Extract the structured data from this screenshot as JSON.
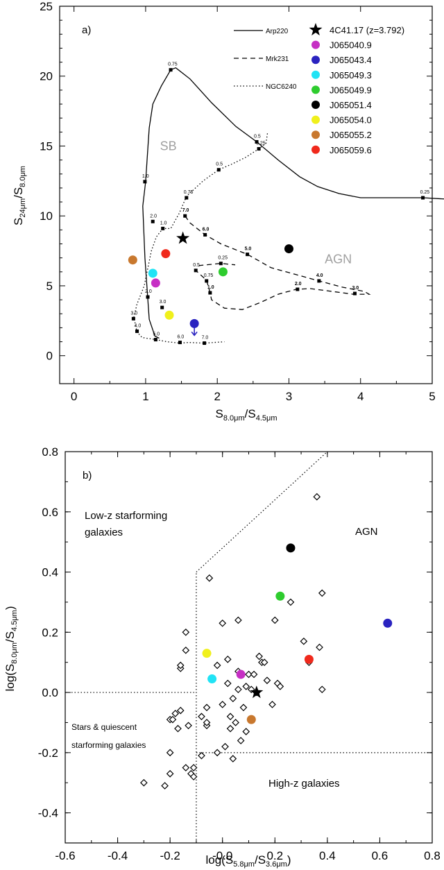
{
  "chart_data": [
    {
      "type": "line",
      "panel_label": "a)",
      "xlabel_main": "S",
      "xlabel_sub1": "8.0μm",
      "xlabel_slash": "/S",
      "xlabel_sub2": "4.5μm",
      "ylabel_main": "S",
      "ylabel_sub1": "24μm",
      "ylabel_slash": "/S",
      "ylabel_sub2": "8.0μm",
      "xlim": [
        -0.2,
        5.0
      ],
      "ylim": [
        -2,
        25
      ],
      "xticks": [
        0,
        1,
        2,
        3,
        4,
        5
      ],
      "yticks": [
        0,
        5,
        10,
        15,
        20,
        25
      ],
      "region_labels": [
        {
          "text": "SB",
          "x": 1.2,
          "y": 14.7
        },
        {
          "text": "AGN",
          "x": 3.5,
          "y": 6.6
        }
      ],
      "templates": [
        {
          "name": "Arp220",
          "style": "solid",
          "points": [
            [
              1.19,
              1.25
            ],
            [
              1.13,
              1.4
            ],
            [
              1.05,
              2.6
            ],
            [
              0.99,
              7.0
            ],
            [
              0.96,
              10.7
            ],
            [
              1.0,
              12.45
            ],
            [
              1.05,
              16.3
            ],
            [
              1.1,
              18.0
            ],
            [
              1.22,
              19.3
            ],
            [
              1.35,
              20.45
            ],
            [
              1.42,
              20.6
            ],
            [
              1.62,
              19.8
            ],
            [
              1.92,
              18.1
            ],
            [
              2.26,
              16.4
            ],
            [
              2.55,
              15.3
            ],
            [
              2.85,
              14.0
            ],
            [
              3.15,
              12.8
            ],
            [
              3.4,
              12.1
            ],
            [
              3.7,
              11.6
            ],
            [
              4.0,
              11.3
            ],
            [
              4.4,
              11.3
            ],
            [
              4.87,
              11.3
            ],
            [
              5.2,
              11.2
            ]
          ],
          "markers": [
            [
              1.35,
              20.45,
              "0.75"
            ],
            [
              2.55,
              15.3,
              "0.5"
            ],
            [
              4.87,
              11.3,
              "0.25"
            ],
            [
              0.99,
              12.45,
              "1.0"
            ]
          ]
        },
        {
          "name": "Mrk231",
          "style": "dashed",
          "points": [
            [
              1.55,
              10.0
            ],
            [
              1.62,
              9.5
            ],
            [
              1.83,
              8.65
            ],
            [
              2.05,
              8.0
            ],
            [
              2.42,
              7.25
            ],
            [
              2.75,
              6.3
            ],
            [
              3.1,
              5.8
            ],
            [
              3.42,
              5.35
            ],
            [
              3.75,
              4.9
            ],
            [
              4.05,
              4.6
            ],
            [
              4.12,
              4.4
            ],
            [
              3.9,
              4.4
            ],
            [
              3.6,
              4.6
            ],
            [
              3.3,
              4.8
            ],
            [
              3.1,
              4.75
            ],
            [
              2.85,
              4.4
            ],
            [
              2.6,
              3.8
            ],
            [
              2.35,
              3.3
            ],
            [
              2.1,
              3.4
            ],
            [
              1.92,
              4.0
            ],
            [
              1.9,
              4.5
            ],
            [
              1.85,
              5.4
            ],
            [
              1.7,
              6.1
            ],
            [
              1.75,
              6.45
            ],
            [
              2.05,
              6.6
            ],
            [
              2.25,
              6.5
            ]
          ],
          "markers": [
            [
              1.55,
              10.0,
              "7.0"
            ],
            [
              1.83,
              8.65,
              "6.0"
            ],
            [
              2.42,
              7.25,
              "5.0"
            ],
            [
              3.42,
              5.35,
              "4.0"
            ],
            [
              3.92,
              4.45,
              "3.0"
            ],
            [
              3.12,
              4.75,
              "2.0"
            ],
            [
              1.9,
              4.5,
              "1.0"
            ],
            [
              1.85,
              5.35,
              "0.75"
            ],
            [
              1.7,
              6.1,
              "0.5"
            ],
            [
              2.05,
              6.6,
              "0.25"
            ]
          ]
        },
        {
          "name": "NGC6240",
          "style": "dotted",
          "points": [
            [
              2.7,
              15.9
            ],
            [
              2.68,
              15.2
            ],
            [
              2.58,
              14.8
            ],
            [
              2.4,
              14.2
            ],
            [
              2.2,
              13.7
            ],
            [
              2.02,
              13.3
            ],
            [
              1.8,
              12.5
            ],
            [
              1.57,
              11.4
            ],
            [
              1.47,
              10.2
            ],
            [
              1.35,
              9.1
            ],
            [
              1.24,
              9.1
            ],
            [
              1.15,
              8.5
            ],
            [
              1.08,
              7.5
            ],
            [
              1.02,
              6.0
            ],
            [
              0.98,
              5.0
            ],
            [
              0.88,
              3.7
            ],
            [
              0.83,
              2.65
            ],
            [
              0.85,
              2.4
            ],
            [
              0.88,
              1.7
            ],
            [
              0.95,
              1.3
            ],
            [
              1.14,
              1.15
            ],
            [
              1.3,
              1.0
            ],
            [
              1.48,
              0.9
            ],
            [
              1.6,
              0.95
            ],
            [
              1.82,
              0.9
            ],
            [
              2.1,
              1.0
            ]
          ],
          "markers": [
            [
              2.58,
              14.8,
              "0.25"
            ],
            [
              2.02,
              13.3,
              "0.5"
            ],
            [
              1.57,
              11.3,
              "0.75"
            ],
            [
              1.24,
              9.1,
              "1.0"
            ],
            [
              1.1,
              9.6,
              "2.0"
            ],
            [
              1.23,
              3.45,
              "3.0"
            ],
            [
              0.83,
              2.65,
              "3.0"
            ],
            [
              0.88,
              1.75,
              "4.0"
            ],
            [
              1.14,
              1.15,
              "5.0"
            ],
            [
              1.48,
              0.95,
              "6.0"
            ],
            [
              1.82,
              0.9,
              "7.0"
            ]
          ],
          "extra_markers": [
            [
              1.03,
              4.2,
              "2.0"
            ]
          ]
        }
      ],
      "sources": [
        {
          "name": "4C41.17 (z=3.792)",
          "marker": "star",
          "color": "#000000",
          "x": 1.52,
          "y": 8.4
        },
        {
          "name": "J065040.9",
          "marker": "circle",
          "color": "#c62fc4",
          "x": 1.14,
          "y": 5.2
        },
        {
          "name": "J065043.4",
          "marker": "circle",
          "color": "#2a23c0",
          "x": 1.68,
          "y": 2.3,
          "upper_limit": true
        },
        {
          "name": "J065049.3",
          "marker": "circle",
          "color": "#21e3f5",
          "x": 1.1,
          "y": 5.9
        },
        {
          "name": "J065049.9",
          "marker": "circle",
          "color": "#2ecc2e",
          "x": 2.08,
          "y": 6.0
        },
        {
          "name": "J065051.4",
          "marker": "circle",
          "color": "#000000",
          "x": 3.0,
          "y": 7.65
        },
        {
          "name": "J065054.0",
          "marker": "circle",
          "color": "#f0f01c",
          "x": 1.33,
          "y": 2.9
        },
        {
          "name": "J065055.2",
          "marker": "circle",
          "color": "#c8782e",
          "x": 0.82,
          "y": 6.85
        },
        {
          "name": "J065059.6",
          "marker": "circle",
          "color": "#f0291c",
          "x": 1.28,
          "y": 7.3
        }
      ]
    },
    {
      "type": "scatter",
      "panel_label": "b)",
      "xlabel_pre": "log(S",
      "xlabel_sub1": "5.8μm",
      "xlabel_slash": "/S",
      "xlabel_sub2": "3.6μm",
      "xlabel_post": ")",
      "ylabel_pre": "log(S",
      "ylabel_sub1": "8.0μm",
      "ylabel_slash": "/S",
      "ylabel_sub2": "4.5μm",
      "ylabel_post": ")",
      "xlim": [
        -0.6,
        0.8
      ],
      "ylim": [
        -0.5,
        0.8
      ],
      "xticks": [
        "-0.6",
        "-0.4",
        "-0.2",
        "-0.0",
        "0.2",
        "0.4",
        "0.6",
        "0.8"
      ],
      "yticks": [
        "-0.4",
        "-0.2",
        "0.0",
        "0.2",
        "0.4",
        "0.6",
        "0.8"
      ],
      "region_labels": [
        {
          "lines": [
            "Low-z starforming",
            "galaxies"
          ]
        },
        {
          "lines": [
            "AGN"
          ]
        },
        {
          "lines": [
            "Stars & quiescent",
            "starforming galaxies"
          ]
        },
        {
          "lines": [
            "High-z galaxies"
          ]
        }
      ],
      "boundaries": [
        [
          [
            -0.6,
            0.0
          ],
          [
            -0.1,
            0.0
          ]
        ],
        [
          [
            -0.1,
            -0.5
          ],
          [
            -0.1,
            0.4
          ]
        ],
        [
          [
            -0.1,
            0.4
          ],
          [
            0.4,
            0.8
          ]
        ],
        [
          [
            -0.1,
            -0.2
          ],
          [
            0.8,
            -0.2
          ]
        ]
      ],
      "comparison_points": [
        [
          -0.3,
          -0.3
        ],
        [
          -0.22,
          -0.31
        ],
        [
          -0.2,
          -0.27
        ],
        [
          -0.2,
          -0.2
        ],
        [
          -0.2,
          -0.09
        ],
        [
          -0.19,
          -0.09
        ],
        [
          -0.18,
          -0.07
        ],
        [
          -0.17,
          -0.12
        ],
        [
          -0.16,
          -0.06
        ],
        [
          -0.16,
          0.08
        ],
        [
          -0.16,
          0.09
        ],
        [
          -0.14,
          0.14
        ],
        [
          -0.14,
          0.2
        ],
        [
          -0.13,
          -0.11
        ],
        [
          -0.14,
          -0.25
        ],
        [
          -0.12,
          -0.27
        ],
        [
          -0.11,
          -0.25
        ],
        [
          -0.11,
          -0.28
        ],
        [
          -0.08,
          -0.21
        ],
        [
          -0.08,
          -0.08
        ],
        [
          -0.06,
          -0.11
        ],
        [
          -0.06,
          -0.1
        ],
        [
          -0.06,
          -0.05
        ],
        [
          -0.05,
          0.38
        ],
        [
          -0.02,
          -0.2
        ],
        [
          -0.02,
          0.09
        ],
        [
          0.0,
          0.23
        ],
        [
          0.0,
          -0.04
        ],
        [
          0.01,
          -0.18
        ],
        [
          0.02,
          0.03
        ],
        [
          0.02,
          0.11
        ],
        [
          0.03,
          -0.08
        ],
        [
          0.03,
          -0.12
        ],
        [
          0.04,
          -0.22
        ],
        [
          0.04,
          -0.02
        ],
        [
          0.05,
          -0.1
        ],
        [
          0.06,
          0.07
        ],
        [
          0.06,
          0.01
        ],
        [
          0.06,
          0.24
        ],
        [
          0.08,
          -0.05
        ],
        [
          0.07,
          -0.16
        ],
        [
          0.09,
          -0.13
        ],
        [
          0.09,
          0.02
        ],
        [
          0.1,
          0.06
        ],
        [
          0.11,
          0.01
        ],
        [
          0.12,
          0.06
        ],
        [
          0.13,
          0.0
        ],
        [
          0.14,
          0.12
        ],
        [
          0.15,
          0.1
        ],
        [
          0.16,
          0.1
        ],
        [
          0.17,
          0.04
        ],
        [
          0.19,
          -0.04
        ],
        [
          0.2,
          0.24
        ],
        [
          0.21,
          0.03
        ],
        [
          0.22,
          0.02
        ],
        [
          0.26,
          0.3
        ],
        [
          0.31,
          0.17
        ],
        [
          0.33,
          0.1
        ],
        [
          0.36,
          0.65
        ],
        [
          0.37,
          0.15
        ],
        [
          0.38,
          0.01
        ],
        [
          0.38,
          0.33
        ]
      ],
      "sources": [
        {
          "name": "4C41.17",
          "marker": "star",
          "color": "#000000",
          "x": 0.13,
          "y": 0.0
        },
        {
          "name": "J065040.9",
          "marker": "circle",
          "color": "#c62fc4",
          "x": 0.07,
          "y": 0.06
        },
        {
          "name": "J065043.4",
          "marker": "circle",
          "color": "#2a23c0",
          "x": 0.63,
          "y": 0.23
        },
        {
          "name": "J065049.3",
          "marker": "circle",
          "color": "#21e3f5",
          "x": -0.04,
          "y": 0.045
        },
        {
          "name": "J065049.9",
          "marker": "circle",
          "color": "#2ecc2e",
          "x": 0.22,
          "y": 0.32
        },
        {
          "name": "J065051.4",
          "marker": "circle",
          "color": "#000000",
          "x": 0.26,
          "y": 0.48
        },
        {
          "name": "J065054.0",
          "marker": "circle",
          "color": "#f0f01c",
          "x": -0.06,
          "y": 0.13
        },
        {
          "name": "J065055.2",
          "marker": "circle",
          "color": "#c8782e",
          "x": 0.11,
          "y": -0.09
        },
        {
          "name": "J065059.6",
          "marker": "circle",
          "color": "#f0291c",
          "x": 0.33,
          "y": 0.11
        }
      ]
    }
  ]
}
